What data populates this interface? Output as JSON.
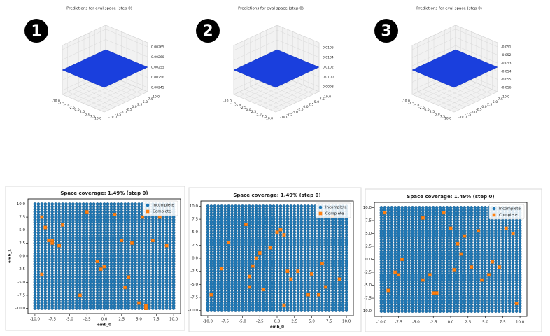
{
  "chart_data": [
    {
      "type": "surface",
      "badge": "1",
      "title": "Predictions for eval space (step 0)",
      "xlim": [
        -10,
        10
      ],
      "ylim": [
        -10,
        10
      ],
      "zlim": [
        0.00243,
        0.00267
      ],
      "xticks": [
        {
          "value": -10,
          "label": "-10.0"
        },
        -7.5,
        {
          "value": -5,
          "label": "-5.0"
        },
        -2.5,
        {
          "value": 0,
          "label": "0.0"
        },
        2.5,
        {
          "value": 5,
          "label": "5.0"
        },
        7.5,
        {
          "value": 10,
          "label": "10.0"
        }
      ],
      "yticks": [
        {
          "value": -10,
          "label": "-10.0"
        },
        -7.5,
        {
          "value": -5,
          "label": "-5.0"
        },
        -2.5,
        {
          "value": 0,
          "label": "0.0"
        },
        2.5,
        {
          "value": 5,
          "label": "5.0"
        },
        7.5,
        {
          "value": 10,
          "label": "10.0"
        }
      ],
      "zticks": [
        0.00245,
        {
          "value": 0.0025,
          "label": "0.00250"
        },
        0.00255,
        {
          "value": 0.0026,
          "label": "0.00260"
        },
        0.00265
      ],
      "color": "#1a3fdd"
    },
    {
      "type": "surface",
      "badge": "2",
      "title": "Predictions for eval space (step 0)",
      "xlim": [
        -10,
        10
      ],
      "ylim": [
        -10,
        10
      ],
      "zlim": [
        0.0097,
        0.0107
      ],
      "xticks": [
        {
          "value": -10,
          "label": "-10.0"
        },
        -7.5,
        {
          "value": -5,
          "label": "-5.0"
        },
        -2.5,
        {
          "value": 0,
          "label": "0.0"
        },
        2.5,
        {
          "value": 5,
          "label": "5.0"
        },
        7.5,
        {
          "value": 10,
          "label": "10.0"
        }
      ],
      "yticks": [
        {
          "value": -10,
          "label": "-10.0"
        },
        -7.5,
        {
          "value": -5,
          "label": "-5.0"
        },
        -2.5,
        {
          "value": 0,
          "label": "0.0"
        },
        2.5,
        {
          "value": 5,
          "label": "5.0"
        },
        7.5,
        {
          "value": 10,
          "label": "10.0"
        }
      ],
      "zticks": [
        0.0098,
        {
          "value": 0.01,
          "label": "0.0100"
        },
        0.0102,
        0.0104,
        0.0106
      ],
      "color": "#1a3fdd"
    },
    {
      "type": "surface",
      "badge": "3",
      "title": "Predictions for eval space (step 0)",
      "xlim": [
        -10,
        10
      ],
      "ylim": [
        -10,
        10
      ],
      "zlim": [
        -0.0565,
        -0.0505
      ],
      "xticks": [
        {
          "value": -10,
          "label": "-10.0"
        },
        -7.5,
        {
          "value": -5,
          "label": "-5.0"
        },
        -2.5,
        {
          "value": 0,
          "label": "0.0"
        },
        2.5,
        {
          "value": 5,
          "label": "5.0"
        },
        7.5,
        {
          "value": 10,
          "label": "10.0"
        }
      ],
      "yticks": [
        {
          "value": -10,
          "label": "-10.0"
        },
        -7.5,
        {
          "value": -5,
          "label": "-5.0"
        },
        -2.5,
        {
          "value": 0,
          "label": "0.0"
        },
        2.5,
        {
          "value": 5,
          "label": "5.0"
        },
        7.5,
        {
          "value": 10,
          "label": "10.0"
        }
      ],
      "zticks": [
        -0.056,
        -0.055,
        -0.054,
        -0.053,
        -0.052,
        -0.051
      ],
      "color": "#1a3fdd"
    },
    {
      "type": "scatter",
      "title": "Space coverage: 1.49% (step 0)",
      "xlabel": "emb_0",
      "ylabel": "emb_1",
      "legend": "upper right",
      "xlim": [
        -11,
        11
      ],
      "ylim": [
        -11,
        11
      ],
      "xticks": [
        {
          "value": -10,
          "label": "-10.0"
        },
        -7.5,
        {
          "value": -5,
          "label": "-5.0"
        },
        -2.5,
        {
          "value": 0,
          "label": "0.0"
        },
        2.5,
        {
          "value": 5,
          "label": "5.0"
        },
        7.5,
        {
          "value": 10,
          "label": "10.0"
        }
      ],
      "yticks": [
        {
          "value": -10,
          "label": "-10.0"
        },
        -7.5,
        {
          "value": -5,
          "label": "-5.0"
        },
        -2.5,
        {
          "value": 0,
          "label": "0.0"
        },
        2.5,
        {
          "value": 5,
          "label": "5.0"
        },
        7.5,
        {
          "value": 10,
          "label": "10.0"
        }
      ],
      "series": [
        {
          "name": "Incomplete",
          "color": "#1f77b4",
          "grid_x": [
            -10,
            -9.5,
            -9,
            -8.5,
            -8,
            -7.5,
            -7,
            -6.5,
            -6,
            -5.5,
            -5,
            -4.5,
            -4,
            -3.5,
            -3,
            -2.5,
            -2,
            -1.5,
            -1,
            -0.5,
            0,
            0.5,
            1,
            1.5,
            2,
            2.5,
            3,
            3.5,
            4,
            4.5,
            5,
            5.5,
            6,
            6.5,
            7,
            7.5,
            8,
            8.5,
            9,
            9.5,
            10
          ],
          "grid_y": [
            -10,
            -9.5,
            -9,
            -8.5,
            -8,
            -7.5,
            -7,
            -6.5,
            -6,
            -5.5,
            -5,
            -4.5,
            -4,
            -3.5,
            -3,
            -2.5,
            -2,
            -1.5,
            -1,
            -0.5,
            0,
            0.5,
            1,
            1.5,
            2,
            2.5,
            3,
            3.5,
            4,
            4.5,
            5,
            5.5,
            6,
            6.5,
            7,
            7.5,
            8,
            8.5,
            9,
            9.5,
            10
          ]
        },
        {
          "name": "Complete",
          "color": "#ff7f0e",
          "x": [
            -9,
            -8.5,
            -8,
            -7.5,
            -7.5,
            -6.5,
            -6,
            -9,
            -2.5,
            -1,
            -0.5,
            0,
            2.5,
            3.5,
            4,
            5,
            5.5,
            6,
            6,
            7,
            8,
            9,
            -3.5,
            1.5,
            3
          ],
          "y": [
            7.5,
            5.5,
            3,
            2.5,
            3,
            2,
            6,
            -3.5,
            8.5,
            -1,
            -2.5,
            -2,
            3,
            -4,
            2.5,
            -9,
            7.5,
            -9.5,
            -10,
            3,
            7.5,
            2,
            -7.5,
            8,
            -6
          ]
        }
      ]
    },
    {
      "type": "scatter",
      "title": "Space coverage: 1.49% (step 0)",
      "xlabel": "emb_0",
      "legend": "upper right",
      "xlim": [
        -11,
        11
      ],
      "ylim": [
        -11,
        11
      ],
      "xticks": [
        {
          "value": -10,
          "label": "-10.0"
        },
        -7.5,
        {
          "value": -5,
          "label": "-5.0"
        },
        -2.5,
        {
          "value": 0,
          "label": "0.0"
        },
        2.5,
        {
          "value": 5,
          "label": "5.0"
        },
        7.5,
        {
          "value": 10,
          "label": "10.0"
        }
      ],
      "yticks": [
        {
          "value": -10,
          "label": "-10.0"
        },
        -7.5,
        {
          "value": -5,
          "label": "-5.0"
        },
        -2.5,
        {
          "value": 0,
          "label": "0.0"
        },
        2.5,
        {
          "value": 5,
          "label": "5.0"
        },
        7.5,
        {
          "value": 10,
          "label": "10.0"
        }
      ],
      "series": [
        {
          "name": "Incomplete",
          "color": "#1f77b4",
          "grid_x": [
            -10,
            -9.5,
            -9,
            -8.5,
            -8,
            -7.5,
            -7,
            -6.5,
            -6,
            -5.5,
            -5,
            -4.5,
            -4,
            -3.5,
            -3,
            -2.5,
            -2,
            -1.5,
            -1,
            -0.5,
            0,
            0.5,
            1,
            1.5,
            2,
            2.5,
            3,
            3.5,
            4,
            4.5,
            5,
            5.5,
            6,
            6.5,
            7,
            7.5,
            8,
            8.5,
            9,
            9.5,
            10
          ],
          "grid_y": [
            -10,
            -9.5,
            -9,
            -8.5,
            -8,
            -7.5,
            -7,
            -6.5,
            -6,
            -5.5,
            -5,
            -4.5,
            -4,
            -3.5,
            -3,
            -2.5,
            -2,
            -1.5,
            -1,
            -0.5,
            0,
            0.5,
            1,
            1.5,
            2,
            2.5,
            3,
            3.5,
            4,
            4.5,
            5,
            5.5,
            6,
            6.5,
            7,
            7.5,
            8,
            8.5,
            9,
            9.5,
            10
          ]
        },
        {
          "name": "Complete",
          "color": "#ff7f0e",
          "x": [
            -9.5,
            -8,
            -7,
            -4.5,
            -4,
            -3.5,
            -3,
            -2.5,
            -4,
            -2,
            0,
            0.5,
            1,
            1.5,
            1,
            2,
            3,
            4.5,
            5,
            6,
            6.5,
            7,
            8,
            9,
            -1
          ],
          "y": [
            -7,
            -2,
            3,
            6.5,
            -5.5,
            -1.5,
            0,
            1,
            -3.5,
            -6,
            5,
            5.5,
            4.5,
            -2.5,
            -9,
            -4,
            -2.5,
            -7,
            -3,
            -7,
            -1,
            -5.5,
            8,
            -4,
            2
          ]
        }
      ]
    },
    {
      "type": "scatter",
      "title": "Space coverage: 1.49% (step 0)",
      "legend": "upper right",
      "xlim": [
        -11,
        11
      ],
      "ylim": [
        -11,
        11
      ],
      "xticks": [
        {
          "value": -10,
          "label": "-10.0"
        },
        -7.5,
        {
          "value": -5,
          "label": "-5.0"
        },
        -2.5,
        {
          "value": 0,
          "label": "0.0"
        },
        2.5,
        {
          "value": 5,
          "label": "5.0"
        },
        7.5,
        {
          "value": 10,
          "label": "10.0"
        }
      ],
      "yticks": [
        {
          "value": -10,
          "label": "-10.0"
        },
        -7.5,
        {
          "value": -5,
          "label": "-5.0"
        },
        -2.5,
        {
          "value": 0,
          "label": "0.0"
        },
        2.5,
        {
          "value": 5,
          "label": "5.0"
        },
        7.5,
        {
          "value": 10,
          "label": "10.0"
        }
      ],
      "series": [
        {
          "name": "Incomplete",
          "color": "#1f77b4",
          "grid_x": [
            -10,
            -9.5,
            -9,
            -8.5,
            -8,
            -7.5,
            -7,
            -6.5,
            -6,
            -5.5,
            -5,
            -4.5,
            -4,
            -3.5,
            -3,
            -2.5,
            -2,
            -1.5,
            -1,
            -0.5,
            0,
            0.5,
            1,
            1.5,
            2,
            2.5,
            3,
            3.5,
            4,
            4.5,
            5,
            5.5,
            6,
            6.5,
            7,
            7.5,
            8,
            8.5,
            9,
            9.5,
            10
          ],
          "grid_y": [
            -10,
            -9.5,
            -9,
            -8.5,
            -8,
            -7.5,
            -7,
            -6.5,
            -6,
            -5.5,
            -5,
            -4.5,
            -4,
            -3.5,
            -3,
            -2.5,
            -2,
            -1.5,
            -1,
            -0.5,
            0,
            0.5,
            1,
            1.5,
            2,
            2.5,
            3,
            3.5,
            4,
            4.5,
            5,
            5.5,
            6,
            6.5,
            7,
            7.5,
            8,
            8.5,
            9,
            9.5,
            10
          ]
        },
        {
          "name": "Complete",
          "color": "#ff7f0e",
          "x": [
            -9.5,
            -9,
            -8,
            -7.5,
            -7,
            -4,
            -4,
            -3,
            -2.5,
            -2,
            -1,
            0,
            0.5,
            1,
            1.5,
            2,
            3,
            4,
            4.5,
            5.5,
            6,
            7,
            8,
            9,
            9.5
          ],
          "y": [
            9,
            -6,
            -2.5,
            -3,
            0,
            8,
            -4,
            -3,
            -6.5,
            -6.5,
            9,
            6,
            -2,
            3,
            1,
            4.5,
            -1.5,
            5.5,
            -4,
            -3,
            -0.5,
            -1.5,
            6,
            5,
            -8.5
          ]
        }
      ]
    }
  ]
}
